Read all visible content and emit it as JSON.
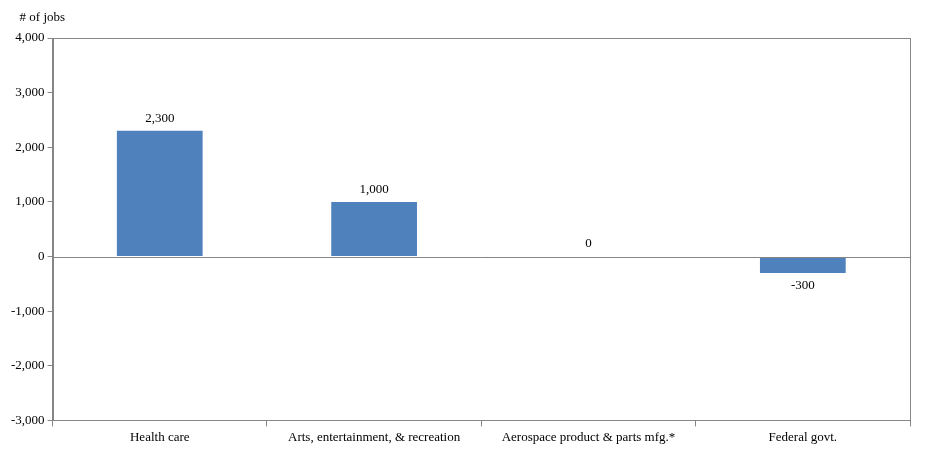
{
  "chart_data": {
    "type": "bar",
    "y_label": "# of jobs",
    "categories": [
      "Health care",
      "Arts, entertainment, & recreation",
      "Aerospace product & parts mfg.*",
      "Federal govt."
    ],
    "values": [
      2300,
      1000,
      0,
      -300
    ],
    "value_labels": [
      "2,300",
      "1,000",
      "0",
      "-300"
    ],
    "data_labels": true,
    "color": "#4f81bd",
    "ylim": [
      -3000,
      4000
    ],
    "yticks": [
      {
        "value": -3000,
        "label": "-3,000"
      },
      {
        "value": -2000,
        "label": "-2,000"
      },
      {
        "value": -1000,
        "label": "-1,000"
      },
      0,
      {
        "value": 1000,
        "label": "1,000"
      },
      {
        "value": 2000,
        "label": "2,000"
      },
      {
        "value": 3000,
        "label": "3,000"
      },
      {
        "value": 4000,
        "label": "4,000"
      }
    ],
    "grid": false
  }
}
